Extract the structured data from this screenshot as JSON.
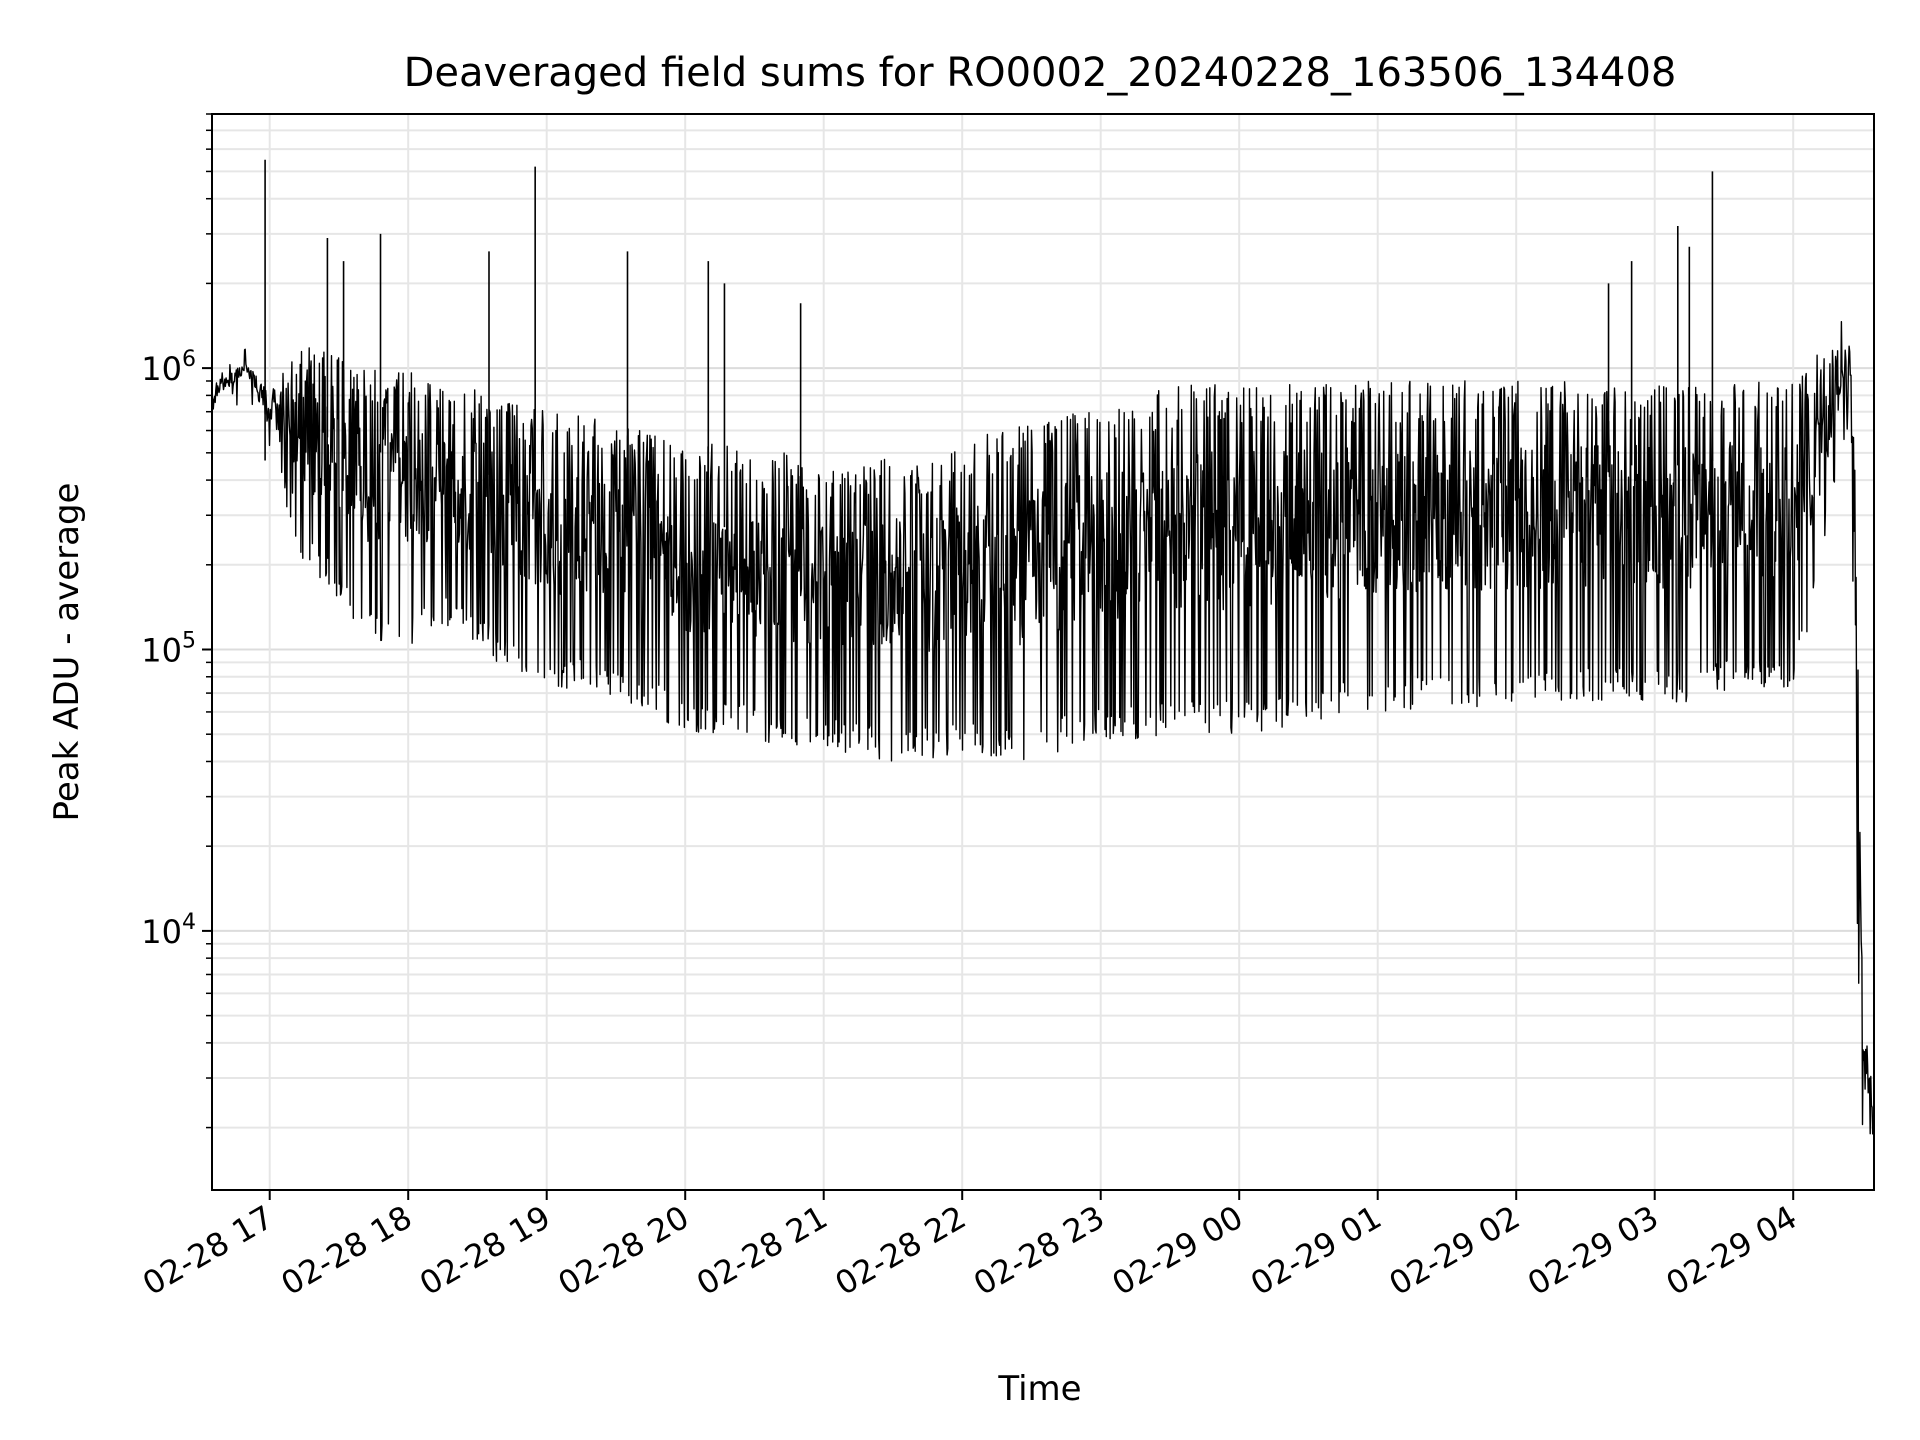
{
  "chart_data": {
    "type": "line",
    "title": "Deaveraged field sums for RO0002_20240228_163506_134408",
    "xlabel": "Time",
    "ylabel": "Peak ADU - average",
    "yscale": "log",
    "ylim": [
      1200,
      8000000
    ],
    "xlim": [
      "02-28 16:35",
      "02-29 04:35"
    ],
    "grid": true,
    "line_color": "#000000",
    "x_ticks": [
      "02-28 17",
      "02-28 18",
      "02-28 19",
      "02-28 20",
      "02-28 21",
      "02-28 22",
      "02-28 23",
      "02-29 00",
      "02-29 01",
      "02-29 02",
      "02-29 03",
      "02-29 04"
    ],
    "y_ticks": [
      {
        "value": 10000,
        "base": "10",
        "exp": "4"
      },
      {
        "value": 100000,
        "base": "10",
        "exp": "5"
      },
      {
        "value": 1000000,
        "base": "10",
        "exp": "6"
      }
    ],
    "series": [
      {
        "description": "Approximate envelope of the dense noisy trace (upper and lower bounds per timestamp, in data units)",
        "x": [
          "02-28 16:35",
          "02-28 16:50",
          "02-28 17:00",
          "02-28 17:15",
          "02-28 17:30",
          "02-28 17:45",
          "02-28 18:00",
          "02-28 18:15",
          "02-28 18:30",
          "02-28 18:45",
          "02-28 19:00",
          "02-28 19:15",
          "02-28 19:30",
          "02-28 19:45",
          "02-28 20:00",
          "02-28 20:15",
          "02-28 20:30",
          "02-28 20:45",
          "02-28 21:00",
          "02-28 21:15",
          "02-28 21:30",
          "02-28 21:45",
          "02-28 22:00",
          "02-28 22:15",
          "02-28 22:30",
          "02-28 22:45",
          "02-28 23:00",
          "02-28 23:15",
          "02-28 23:30",
          "02-28 23:45",
          "02-29 00:00",
          "02-29 00:15",
          "02-29 00:30",
          "02-29 00:45",
          "02-29 01:00",
          "02-29 01:15",
          "02-29 01:30",
          "02-29 01:45",
          "02-29 02:00",
          "02-29 02:15",
          "02-29 02:30",
          "02-29 02:45",
          "02-29 03:00",
          "02-29 03:15",
          "02-29 03:30",
          "02-29 03:45",
          "02-29 04:00",
          "02-29 04:10",
          "02-29 04:20",
          "02-29 04:25",
          "02-29 04:28",
          "02-29 04:30",
          "02-29 04:35"
        ],
        "upper": [
          900000,
          1100000,
          900000,
          1200000,
          1100000,
          1000000,
          1000000,
          900000,
          850000,
          800000,
          700000,
          700000,
          650000,
          600000,
          500000,
          550000,
          500000,
          500000,
          450000,
          450000,
          500000,
          500000,
          550000,
          600000,
          650000,
          700000,
          750000,
          800000,
          850000,
          900000,
          900000,
          900000,
          900000,
          900000,
          900000,
          900000,
          900000,
          900000,
          900000,
          900000,
          900000,
          900000,
          900000,
          900000,
          950000,
          900000,
          900000,
          1100000,
          1500000,
          1300000,
          200000,
          6000,
          2500
        ],
        "lower": [
          700000,
          900000,
          500000,
          200000,
          150000,
          100000,
          100000,
          120000,
          100000,
          80000,
          70000,
          70000,
          65000,
          60000,
          50000,
          50000,
          48000,
          45000,
          45000,
          42000,
          40000,
          40000,
          42000,
          40000,
          38000,
          45000,
          48000,
          48000,
          50000,
          50000,
          50000,
          52000,
          55000,
          58000,
          60000,
          60000,
          62000,
          62000,
          65000,
          65000,
          65000,
          65000,
          65000,
          65000,
          70000,
          70000,
          70000,
          150000,
          500000,
          500000,
          7000,
          2000,
          1800
        ]
      }
    ],
    "spikes": [
      {
        "x": "02-28 16:58",
        "y": 5500000
      },
      {
        "x": "02-28 17:25",
        "y": 2900000
      },
      {
        "x": "02-28 17:32",
        "y": 2400000
      },
      {
        "x": "02-28 17:48",
        "y": 3000000
      },
      {
        "x": "02-28 18:35",
        "y": 2600000
      },
      {
        "x": "02-28 18:55",
        "y": 5200000
      },
      {
        "x": "02-28 19:35",
        "y": 2600000
      },
      {
        "x": "02-28 20:10",
        "y": 2400000
      },
      {
        "x": "02-28 20:17",
        "y": 2000000
      },
      {
        "x": "02-28 20:50",
        "y": 1700000
      },
      {
        "x": "02-29 03:10",
        "y": 3200000
      },
      {
        "x": "02-29 03:25",
        "y": 5000000
      },
      {
        "x": "02-29 02:50",
        "y": 2400000
      },
      {
        "x": "02-29 02:40",
        "y": 2000000
      },
      {
        "x": "02-29 03:15",
        "y": 2700000
      }
    ]
  }
}
